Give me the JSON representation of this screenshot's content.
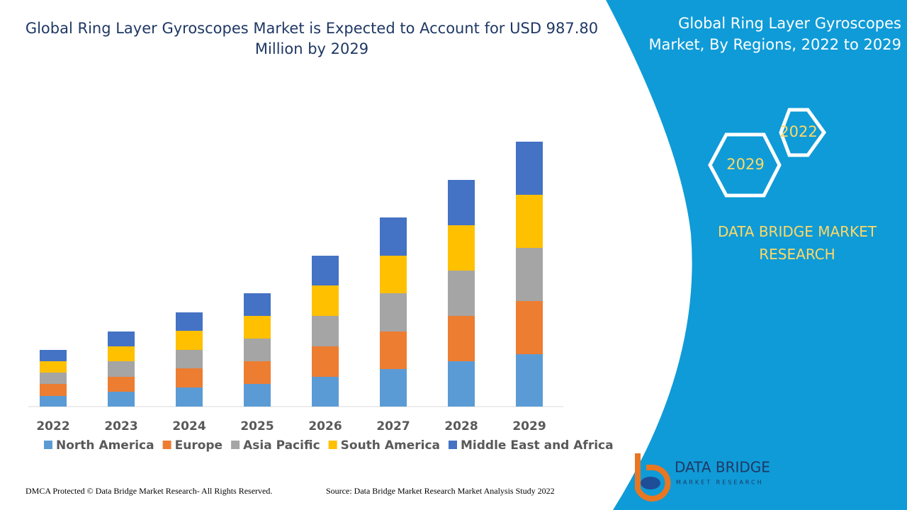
{
  "chart_data": {
    "type": "stacked_bar",
    "title": "Global Ring Layer Gyroscopes Market is Expected to Account for USD 987.80 Million by 2029",
    "categories": [
      "2022",
      "2023",
      "2024",
      "2025",
      "2026",
      "2027",
      "2028",
      "2029"
    ],
    "series": [
      {
        "name": "North America",
        "color": "#5b9bd5",
        "values": [
          15,
          21,
          27,
          32,
          42,
          53,
          64,
          74
        ]
      },
      {
        "name": "Europe",
        "color": "#ed7d31",
        "values": [
          17,
          21,
          27,
          32,
          43,
          53,
          64,
          75
        ]
      },
      {
        "name": "Asia Pacific",
        "color": "#a5a5a5",
        "values": [
          16,
          22,
          26,
          32,
          43,
          54,
          64,
          75
        ]
      },
      {
        "name": "South America",
        "color": "#ffc000",
        "values": [
          16,
          21,
          27,
          32,
          43,
          53,
          64,
          75
        ]
      },
      {
        "name": "Middle East and Africa",
        "color": "#4472c4",
        "values": [
          16,
          21,
          26,
          32,
          42,
          54,
          64,
          75
        ]
      }
    ],
    "ylim": [
      0,
      400
    ]
  },
  "side_panel": {
    "title": "Global Ring Layer Gyroscopes Market, By Regions, 2022 to 2029",
    "hexagons": [
      "2022",
      "2029"
    ],
    "brand": "DATA BRIDGE MARKET RESEARCH"
  },
  "logo": {
    "name": "DATA BRIDGE",
    "tagline": "MARKET RESEARCH"
  },
  "footer": {
    "copyright": "DMCA Protected © Data Bridge Market Research- All Rights Reserved.",
    "source": "Source: Data Bridge Market Research Market Analysis Study 2022"
  }
}
